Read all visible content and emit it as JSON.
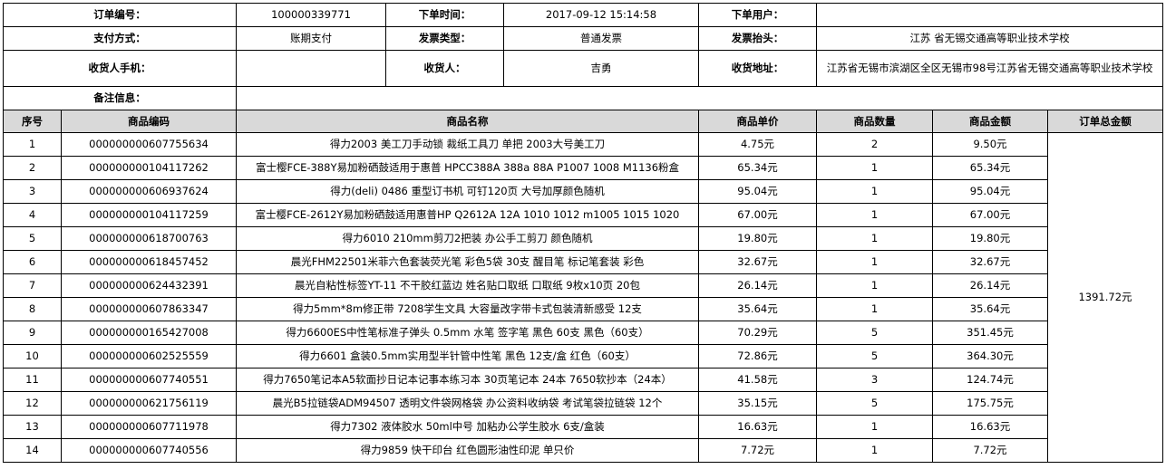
{
  "order_info": {
    "order_no_label": "订单编号：",
    "order_no": "100000339771",
    "order_time_label": "下单时间：",
    "order_time": "2017-09-12 15:14:58",
    "order_user_label": "下单用户：",
    "order_user": "",
    "payment_label": "支付方式：",
    "payment": "账期支付",
    "invoice_type_label": "发票类型：",
    "invoice_type": "普通发票",
    "invoice_title_label": "发票抬头：",
    "invoice_title": "江苏 省无锡交通高等职业技术学校",
    "receiver_phone_label": "收货人手机：",
    "receiver_phone": "",
    "receiver_label": "收货人：",
    "receiver": "吉勇",
    "address_label": "收货地址：",
    "address": "江苏省无锡市滨湖区全区无锡市98号江苏省无锡交通高等职业技术学校",
    "remark_label": "备注信息：",
    "remark": ""
  },
  "table": {
    "headers": [
      "序号",
      "商品编码",
      "商品名称",
      "商品单价",
      "商品数量",
      "商品金额",
      "订单总金额"
    ],
    "order_total": "1391.72元",
    "rows": [
      {
        "no": "1",
        "code": "000000000607755634",
        "name": "得力2003 美工刀手动锁 裁纸工具刀 单把 2003大号美工刀",
        "price": "4.75元",
        "qty": "2",
        "amount": "9.50元"
      },
      {
        "no": "2",
        "code": "000000000104117262",
        "name": "富士樱FCE-388Y易加粉硒鼓适用于惠普 HPCC388A 388a 88A P1007 1008 M1136粉盒",
        "price": "65.34元",
        "qty": "1",
        "amount": "65.34元"
      },
      {
        "no": "3",
        "code": "000000000606937624",
        "name": "得力(deli) 0486 重型订书机 可钉120页 大号加厚颜色随机",
        "price": "95.04元",
        "qty": "1",
        "amount": "95.04元"
      },
      {
        "no": "4",
        "code": "000000000104117259",
        "name": "富士樱FCE-2612Y易加粉硒鼓适用惠普HP Q2612A 12A 1010 1012 m1005 1015 1020",
        "price": "67.00元",
        "qty": "1",
        "amount": "67.00元"
      },
      {
        "no": "5",
        "code": "000000000618700763",
        "name": "得力6010 210mm剪刀2把装 办公手工剪刀 颜色随机",
        "price": "19.80元",
        "qty": "1",
        "amount": "19.80元"
      },
      {
        "no": "6",
        "code": "000000000618457452",
        "name": "晨光FHM22501米菲六色套装荧光笔 彩色5袋 30支 醒目笔 标记笔套装 彩色",
        "price": "32.67元",
        "qty": "1",
        "amount": "32.67元"
      },
      {
        "no": "7",
        "code": "000000000624432391",
        "name": "晨光自粘性标签YT-11 不干胶红蓝边 姓名贴口取纸 口取纸 9枚x10页 20包",
        "price": "26.14元",
        "qty": "1",
        "amount": "26.14元"
      },
      {
        "no": "8",
        "code": "000000000607863347",
        "name": "得力5mm*8m修正带 7208学生文具 大容量改字带卡式包装清新感受 12支",
        "price": "35.64元",
        "qty": "1",
        "amount": "35.64元"
      },
      {
        "no": "9",
        "code": "000000000165427008",
        "name": "得力6600ES中性笔标准子弹头 0.5mm 水笔 签字笔 黑色 60支 黑色（60支）",
        "price": "70.29元",
        "qty": "5",
        "amount": "351.45元"
      },
      {
        "no": "10",
        "code": "000000000602525559",
        "name": "得力6601 盒装0.5mm实用型半针管中性笔 黑色 12支/盒 红色（60支）",
        "price": "72.86元",
        "qty": "5",
        "amount": "364.30元"
      },
      {
        "no": "11",
        "code": "000000000607740551",
        "name": "得力7650笔记本A5软面抄日记本记事本练习本 30页笔记本 24本 7650软抄本（24本）",
        "price": "41.58元",
        "qty": "3",
        "amount": "124.74元"
      },
      {
        "no": "12",
        "code": "000000000621756119",
        "name": "晨光B5拉链袋ADM94507 透明文件袋网格袋 办公资料收纳袋 考试笔袋拉链袋 12个",
        "price": "35.15元",
        "qty": "5",
        "amount": "175.75元"
      },
      {
        "no": "13",
        "code": "000000000607711978",
        "name": "得力7302 液体胶水 50ml中号 加粘办公学生胶水 6支/盒装",
        "price": "16.63元",
        "qty": "1",
        "amount": "16.63元"
      },
      {
        "no": "14",
        "code": "000000000607740556",
        "name": "得力9859 快干印台 红色圆形油性印泥 单只价",
        "price": "7.72元",
        "qty": "1",
        "amount": "7.72元"
      }
    ]
  },
  "colors": {
    "header_bg": "#d9d9d9",
    "border": "#000000"
  }
}
